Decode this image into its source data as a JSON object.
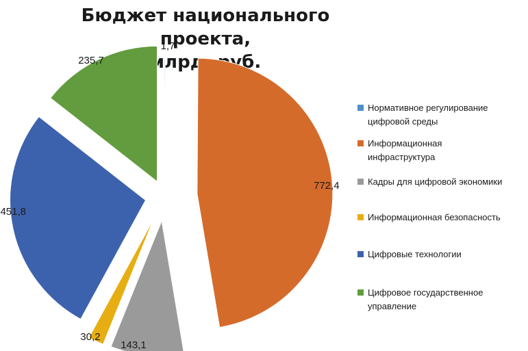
{
  "chart_data": {
    "type": "pie",
    "title": "Бюджет национального проекта, млрд. руб.",
    "title_lines": [
      "Бюджет национального проекта,",
      "млрд. руб."
    ],
    "exploded": true,
    "legend_position": "right",
    "slices": [
      {
        "name": "Нормативное регулирование цифровой среды",
        "value": 1.7,
        "label": "1,7",
        "color": "#4f8fcc"
      },
      {
        "name": "Информационная инфраструктура",
        "value": 772.4,
        "label": "772,4",
        "color": "#d56b2a"
      },
      {
        "name": "Кадры для цифровой экономики",
        "value": 143.1,
        "label": "143,1",
        "color": "#9a9a9a"
      },
      {
        "name": "Информационная безопасность",
        "value": 30.2,
        "label": "30,2",
        "color": "#e6ae12"
      },
      {
        "name": "Цифровые технологии",
        "value": 451.8,
        "label": "451,8",
        "color": "#3d62ad"
      },
      {
        "name": "Цифровое государственное управление",
        "value": 235.7,
        "label": "235,7",
        "color": "#629c3e"
      }
    ]
  },
  "legend": {
    "items": [
      {
        "lines": [
          "Нормативное регулирование",
          "цифровой среды"
        ],
        "color": "#4f8fcc"
      },
      {
        "lines": [
          "Информационная",
          "инфраструктура"
        ],
        "color": "#d56b2a"
      },
      {
        "lines": [
          "Кадры для цифровой экономики"
        ],
        "color": "#9a9a9a"
      },
      {
        "lines": [
          "Информационная безопасность"
        ],
        "color": "#e6ae12"
      },
      {
        "lines": [
          "Цифровые технологии"
        ],
        "color": "#3d62ad"
      },
      {
        "lines": [
          "Цифровое государственное",
          "управление"
        ],
        "color": "#629c3e"
      }
    ]
  }
}
